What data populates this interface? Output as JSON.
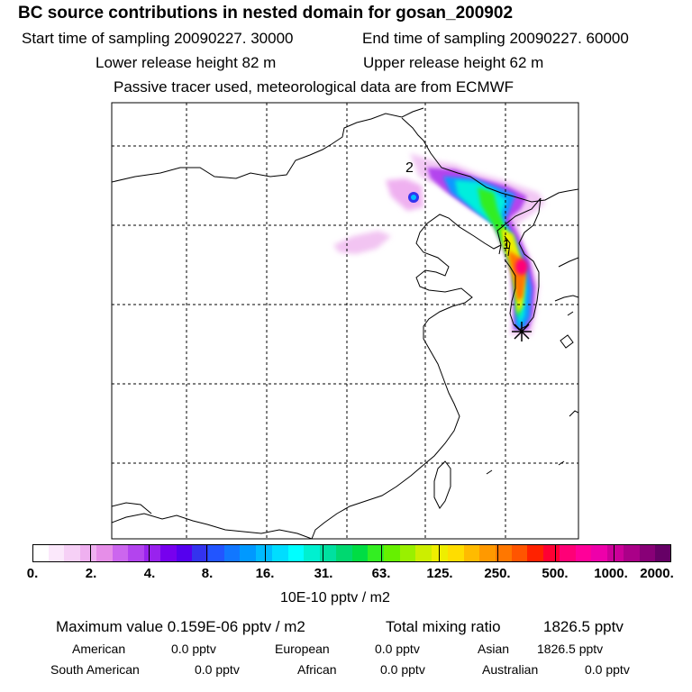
{
  "title": "BC  source contributions in nested domain for gosan_200902",
  "header": {
    "start_time": "Start time of sampling 20090227. 30000",
    "end_time": "End time of sampling 20090227. 60000",
    "lower_release": "Lower release height   82 m",
    "upper_release": "Upper release height   62 m",
    "tracer_note": "Passive tracer used, meteorological data are from ECMWF"
  },
  "map": {
    "trajectory_labels": [
      "2",
      "1"
    ],
    "receptor_marker": "star-marker"
  },
  "colorbar": {
    "ticks": [
      "0.",
      "2.",
      "4.",
      "8.",
      "16.",
      "31.",
      "63.",
      "125.",
      "250.",
      "500.",
      "1000.",
      "2000."
    ],
    "colors": [
      "#ffffff",
      "#fbe8fb",
      "#f6d0f6",
      "#efb0f0",
      "#e68ee8",
      "#cc66ee",
      "#b344ee",
      "#9922ee",
      "#7700ee",
      "#5500ee",
      "#3333ee",
      "#2255ff",
      "#1177ff",
      "#0099ff",
      "#00bbff",
      "#00ddff",
      "#00ffff",
      "#00f0d0",
      "#00e0a0",
      "#00d870",
      "#00dd44",
      "#33ee22",
      "#66f000",
      "#99f000",
      "#ccee00",
      "#eeee00",
      "#ffdd00",
      "#ffbb00",
      "#ff9900",
      "#ff7700",
      "#ff5500",
      "#ff2200",
      "#ff0033",
      "#ff0077",
      "#ff0099",
      "#ee00aa",
      "#cc0099",
      "#aa0088",
      "#880077",
      "#660066"
    ],
    "units": "10E-10 pptv / m2"
  },
  "summary": {
    "max_value": "Maximum value  0.159E-06 pptv / m2",
    "total_label": "Total mixing ratio",
    "total_value": "1826.5 pptv",
    "regions": [
      {
        "name": "American",
        "value": "0.0 pptv"
      },
      {
        "name": "European",
        "value": "0.0 pptv"
      },
      {
        "name": "Asian",
        "value": "1826.5 pptv"
      },
      {
        "name": "South American",
        "value": "0.0 pptv"
      },
      {
        "name": "African",
        "value": "0.0 pptv"
      },
      {
        "name": "Australian",
        "value": "0.0 pptv"
      }
    ]
  }
}
